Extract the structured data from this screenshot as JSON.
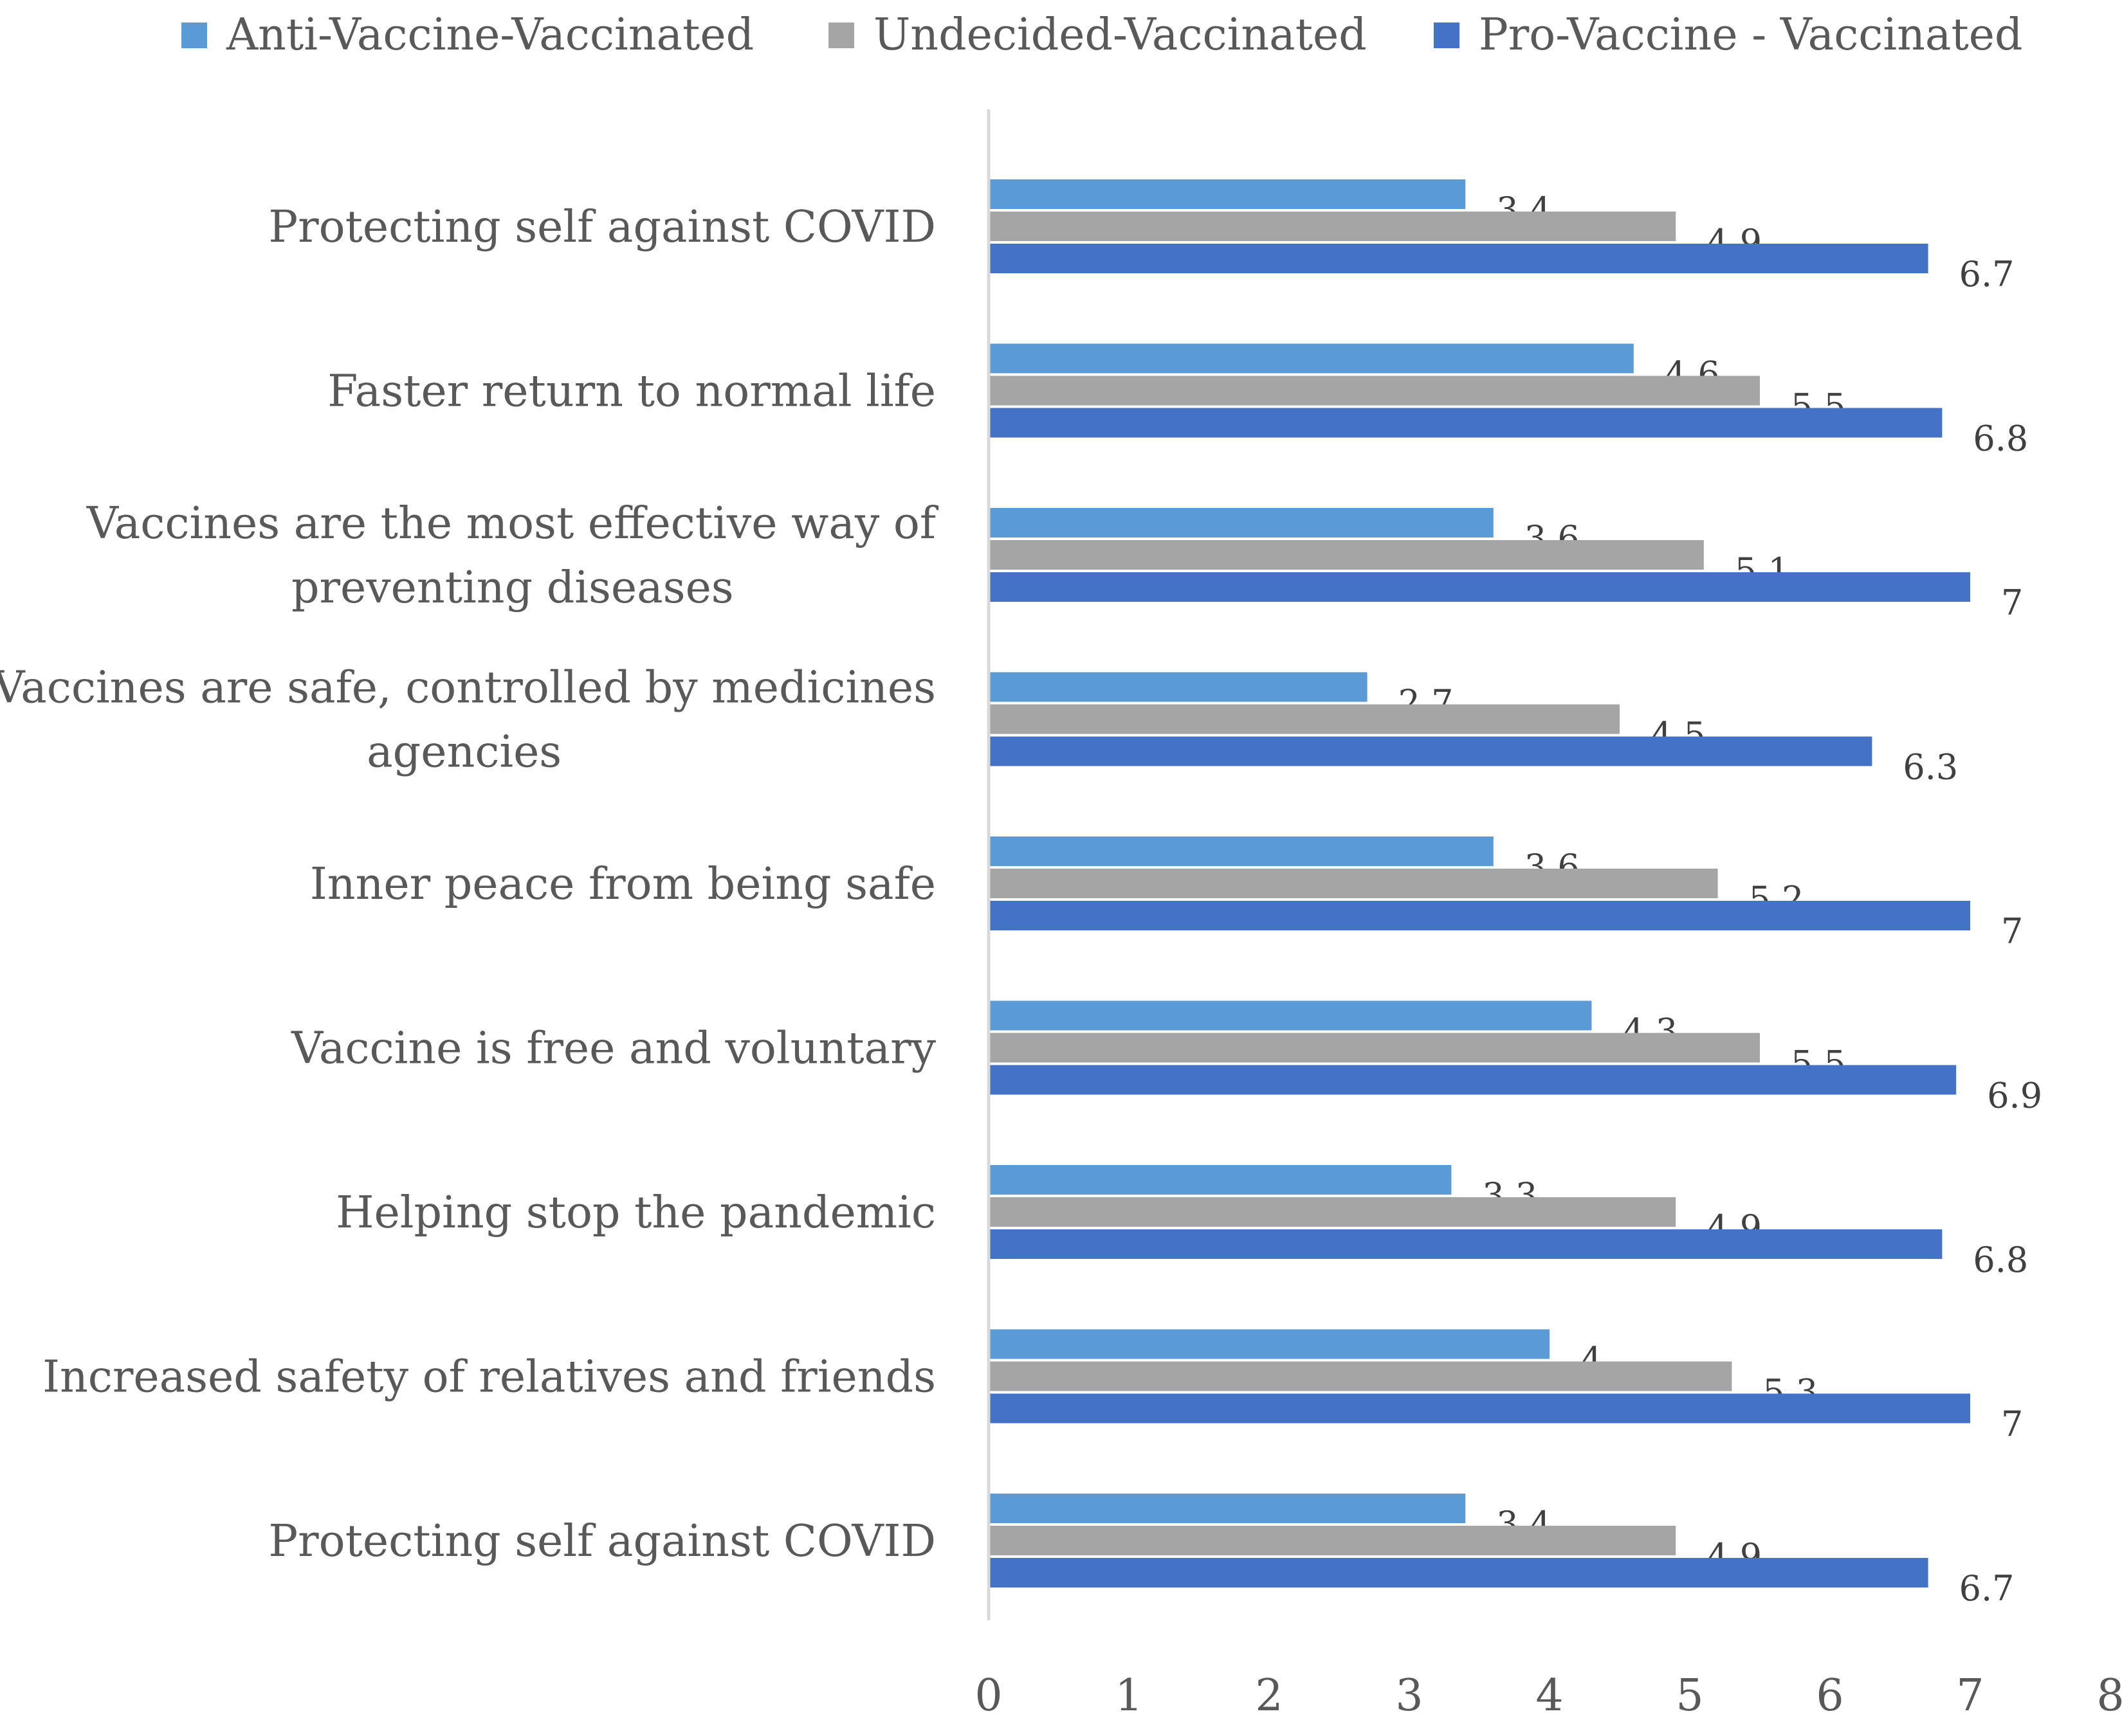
{
  "chart_data": {
    "type": "bar",
    "orientation": "horizontal",
    "title": "",
    "xlabel": "",
    "ylabel": "",
    "xlim": [
      0,
      8
    ],
    "xticks": [
      0,
      1,
      2,
      3,
      4,
      5,
      6,
      7,
      8
    ],
    "grid": false,
    "legend_position": "top",
    "categories": [
      [
        "Protecting self against COVID"
      ],
      [
        "Faster return to normal life"
      ],
      [
        "Vaccines are the most effective way of",
        "preventing diseases"
      ],
      [
        "Vaccines are safe, controlled by medicines",
        "agencies"
      ],
      [
        "Inner peace from being safe"
      ],
      [
        "Vaccine is free and voluntary"
      ],
      [
        "Helping stop the pandemic"
      ],
      [
        "Increased safety of relatives and friends"
      ],
      [
        "Protecting self against COVID"
      ]
    ],
    "series": [
      {
        "name": "Anti-Vaccine-Vaccinated",
        "color": "#5B9BD5",
        "values": [
          3.4,
          4.6,
          3.6,
          2.7,
          3.6,
          4.3,
          3.3,
          4,
          3.4
        ]
      },
      {
        "name": "Undecided-Vaccinated",
        "color": "#A5A5A5",
        "values": [
          4.9,
          5.5,
          5.1,
          4.5,
          5.2,
          5.5,
          4.9,
          5.3,
          4.9
        ]
      },
      {
        "name": "Pro-Vaccine - Vaccinated",
        "color": "#4472C4",
        "values": [
          6.7,
          6.8,
          7,
          6.3,
          7,
          6.9,
          6.8,
          7,
          6.7
        ]
      }
    ],
    "axis_color": "#D9D9D9"
  }
}
